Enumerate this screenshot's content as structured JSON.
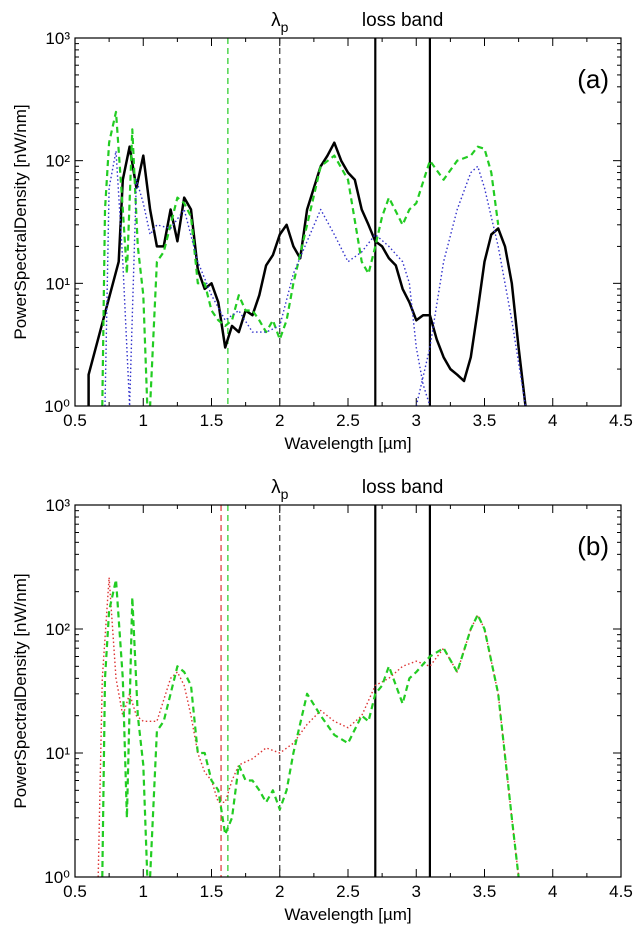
{
  "chart_data": [
    {
      "type": "line",
      "panel_label": "(a)",
      "xlabel": "Wavelength [µm]",
      "ylabel": "PowerSpectralDensity [nW/nm]",
      "xlim": [
        0.5,
        4.5
      ],
      "ylim": [
        1,
        1000
      ],
      "y_scale": "log",
      "xticks": [
        "0.5",
        "1",
        "1.5",
        "2",
        "2.5",
        "3",
        "3.5",
        "4",
        "4.5"
      ],
      "yticks": [
        "10⁰",
        "10¹",
        "10²",
        "10³"
      ],
      "annotations": [
        {
          "text": "λ",
          "sub": "p",
          "x": 2.0
        },
        {
          "text": "loss band",
          "x": 2.9
        }
      ],
      "vlines": [
        {
          "x": 2.0,
          "color": "#333333",
          "style": "dashed"
        },
        {
          "x": 1.62,
          "color": "#22cc22",
          "style": "dashed"
        },
        {
          "x": 2.7,
          "color": "#000000",
          "style": "solid"
        },
        {
          "x": 3.1,
          "color": "#000000",
          "style": "solid"
        }
      ],
      "series": [
        {
          "color": "#000000",
          "style": "solid",
          "x": [
            0.6,
            0.6,
            0.82,
            0.85,
            0.9,
            0.95,
            1.0,
            1.05,
            1.1,
            1.15,
            1.2,
            1.25,
            1.3,
            1.35,
            1.4,
            1.45,
            1.5,
            1.55,
            1.6,
            1.65,
            1.7,
            1.75,
            1.8,
            1.85,
            1.9,
            1.95,
            2.0,
            2.05,
            2.1,
            2.15,
            2.2,
            2.25,
            2.3,
            2.35,
            2.4,
            2.45,
            2.5,
            2.55,
            2.6,
            2.65,
            2.7,
            2.75,
            2.8,
            2.85,
            2.9,
            2.95,
            3.0,
            3.05,
            3.1,
            3.15,
            3.2,
            3.25,
            3.3,
            3.35,
            3.4,
            3.45,
            3.5,
            3.55,
            3.6,
            3.65,
            3.7,
            3.75,
            3.8
          ],
          "y": [
            1.0,
            1.8,
            15,
            70,
            130,
            60,
            110,
            40,
            20,
            20,
            40,
            22,
            50,
            40,
            13,
            9,
            10,
            7,
            3.0,
            4.5,
            4.0,
            6.0,
            5.5,
            8,
            14,
            17,
            25,
            30,
            20,
            16,
            40,
            60,
            90,
            110,
            140,
            100,
            80,
            70,
            40,
            30,
            22,
            20,
            16,
            14,
            9,
            7,
            5,
            5.5,
            5.5,
            3.5,
            2.5,
            2,
            1.8,
            1.6,
            2.5,
            6,
            15,
            25,
            28,
            20,
            10,
            3,
            1.0
          ]
        },
        {
          "color": "#22cc22",
          "style": "dashed",
          "x": [
            0.7,
            0.72,
            0.75,
            0.8,
            0.85,
            0.88,
            0.92,
            0.96,
            1.0,
            1.03,
            1.05,
            1.1,
            1.15,
            1.2,
            1.25,
            1.3,
            1.35,
            1.4,
            1.45,
            1.5,
            1.55,
            1.6,
            1.65,
            1.7,
            1.75,
            1.8,
            1.85,
            1.9,
            1.95,
            2.0,
            2.05,
            2.1,
            2.2,
            2.3,
            2.4,
            2.5,
            2.6,
            2.65,
            2.7,
            2.75,
            2.8,
            2.9,
            2.95,
            3.0,
            3.1,
            3.2,
            3.3,
            3.4,
            3.45,
            3.5,
            3.55,
            3.6
          ],
          "y": [
            1.0,
            40,
            140,
            250,
            40,
            12,
            180,
            20,
            8,
            1.0,
            1.0,
            15,
            18,
            30,
            50,
            45,
            35,
            10,
            10,
            6,
            5,
            4.5,
            5,
            8,
            6,
            6,
            5,
            4,
            5,
            3.5,
            5,
            10,
            30,
            90,
            110,
            70,
            15,
            12,
            20,
            35,
            50,
            30,
            40,
            45,
            100,
            70,
            100,
            110,
            130,
            125,
            80,
            30
          ]
        },
        {
          "color": "#3333cc",
          "style": "dotted",
          "x": [
            0.72,
            0.75,
            0.8,
            0.85,
            0.9,
            0.95,
            1.0,
            1.05,
            1.1,
            1.2,
            1.3,
            1.4,
            1.5,
            1.6,
            1.7,
            1.8,
            1.9,
            2.0,
            2.1,
            2.2,
            2.3,
            2.4,
            2.5,
            2.6,
            2.7,
            2.8,
            2.9,
            2.95,
            3.0,
            3.05,
            3.1
          ],
          "y": [
            1.0,
            60,
            120,
            15,
            1.0,
            70,
            45,
            25,
            30,
            28,
            40,
            15,
            8,
            5,
            6,
            4,
            4,
            4.5,
            12,
            22,
            40,
            25,
            15,
            18,
            25,
            20,
            15,
            10,
            3,
            1.5,
            1.0
          ]
        },
        {
          "color": "#3333cc",
          "style": "dotted",
          "x": [
            3.0,
            3.1,
            3.2,
            3.3,
            3.4,
            3.45,
            3.5,
            3.6,
            3.7,
            3.8
          ],
          "y": [
            1.0,
            3,
            15,
            40,
            80,
            90,
            60,
            20,
            5,
            1.0
          ]
        }
      ]
    },
    {
      "type": "line",
      "panel_label": "(b)",
      "xlabel": "Wavelength [µm]",
      "ylabel": "PowerSpectralDensity [nW/nm]",
      "xlim": [
        0.5,
        4.5
      ],
      "ylim": [
        1,
        1000
      ],
      "y_scale": "log",
      "xticks": [
        "0.5",
        "1",
        "1.5",
        "2",
        "2.5",
        "3",
        "3.5",
        "4",
        "4.5"
      ],
      "yticks": [
        "10⁰",
        "10¹",
        "10²",
        "10³"
      ],
      "annotations": [
        {
          "text": "λ",
          "sub": "p",
          "x": 2.0
        },
        {
          "text": "loss band",
          "x": 2.9
        }
      ],
      "vlines": [
        {
          "x": 2.0,
          "color": "#333333",
          "style": "dashed"
        },
        {
          "x": 1.57,
          "color": "#dd3333",
          "style": "dashed"
        },
        {
          "x": 1.62,
          "color": "#22cc22",
          "style": "dashed"
        },
        {
          "x": 2.7,
          "color": "#000000",
          "style": "solid"
        },
        {
          "x": 3.1,
          "color": "#000000",
          "style": "solid"
        }
      ],
      "series": [
        {
          "color": "#dd3333",
          "style": "dotted",
          "x": [
            0.67,
            0.7,
            0.75,
            0.8,
            0.85,
            0.9,
            0.95,
            1.0,
            1.1,
            1.2,
            1.25,
            1.3,
            1.35,
            1.4,
            1.45,
            1.5,
            1.55,
            1.6,
            1.65,
            1.7,
            1.8,
            1.9,
            2.0,
            2.1,
            2.2,
            2.3,
            2.4,
            2.5,
            2.6,
            2.7,
            2.8,
            2.9,
            3.0,
            3.1,
            3.2,
            3.3,
            3.4,
            3.45,
            3.5,
            3.6,
            3.7,
            3.75
          ],
          "y": [
            1.0,
            40,
            260,
            40,
            20,
            30,
            20,
            18,
            18,
            40,
            45,
            35,
            20,
            10,
            7,
            6,
            4,
            4,
            6,
            8,
            9,
            11,
            10,
            12,
            17,
            22,
            18,
            16,
            20,
            35,
            40,
            50,
            55,
            50,
            70,
            45,
            100,
            130,
            100,
            30,
            3,
            1.0
          ]
        },
        {
          "color": "#22cc22",
          "style": "dashed",
          "x": [
            0.7,
            0.72,
            0.75,
            0.8,
            0.85,
            0.88,
            0.92,
            0.96,
            1.0,
            1.03,
            1.05,
            1.1,
            1.15,
            1.2,
            1.25,
            1.3,
            1.35,
            1.4,
            1.45,
            1.5,
            1.55,
            1.6,
            1.65,
            1.7,
            1.75,
            1.8,
            1.85,
            1.9,
            1.95,
            2.0,
            2.05,
            2.1,
            2.2,
            2.3,
            2.4,
            2.5,
            2.6,
            2.65,
            2.7,
            2.75,
            2.8,
            2.9,
            2.95,
            3.0,
            3.1,
            3.2,
            3.3,
            3.4,
            3.45,
            3.5,
            3.6,
            3.7,
            3.75
          ],
          "y": [
            1.0,
            40,
            140,
            250,
            40,
            3,
            180,
            20,
            8,
            1.0,
            1.0,
            15,
            18,
            30,
            50,
            45,
            35,
            10,
            10,
            6,
            5,
            2.2,
            3,
            8,
            6,
            6,
            5,
            4,
            5,
            3.5,
            5,
            10,
            30,
            20,
            14,
            12,
            20,
            18,
            30,
            35,
            50,
            25,
            40,
            45,
            60,
            70,
            45,
            100,
            130,
            100,
            30,
            3,
            1.0
          ]
        }
      ]
    }
  ]
}
